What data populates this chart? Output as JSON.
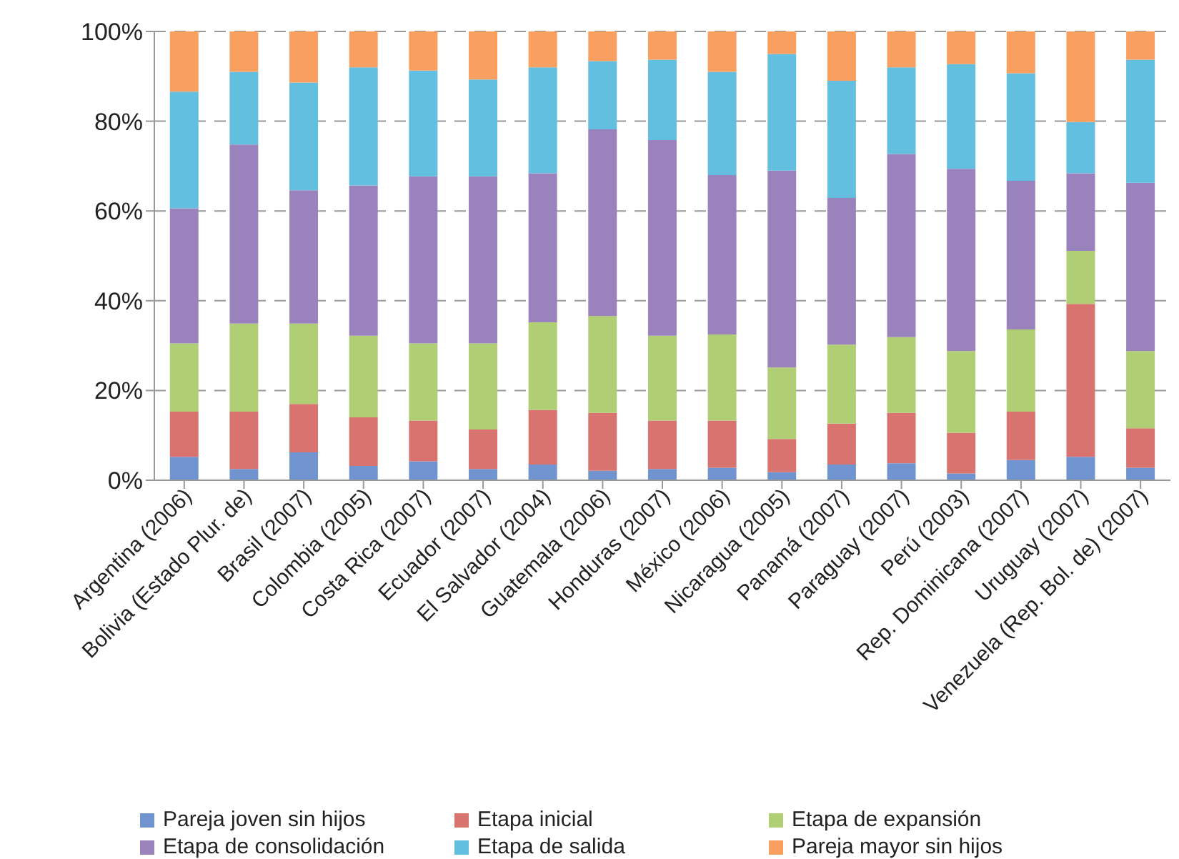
{
  "chart_data": {
    "type": "bar",
    "stacked": true,
    "categories": [
      "Argentina (2006)",
      "Bolivia (Estado Plur. de)",
      "Brasil (2007)",
      "Colombia (2005)",
      "Costa Rica (2007)",
      "Ecuador (2007)",
      "El Salvador (2004)",
      "Guatemala (2006)",
      "Honduras (2007)",
      "México (2006)",
      "Nicaragua (2005)",
      "Panamá (2007)",
      "Paraguay (2007)",
      "Perú (2003)",
      "Rep. Dominicana (2007)",
      "Uruguay (2007)",
      "Venezuela (Rep. Bol. de) (2007)"
    ],
    "series": [
      {
        "name": "Pareja joven sin hijos",
        "color": "#6f94d0",
        "values": [
          5.2,
          2.5,
          6.2,
          3.2,
          4.2,
          2.5,
          3.5,
          2.1,
          2.5,
          2.8,
          1.8,
          3.5,
          3.8,
          1.5,
          4.5,
          5.2,
          2.8
        ]
      },
      {
        "name": "Etapa inicial",
        "color": "#d9736f",
        "values": [
          10.1,
          12.8,
          10.8,
          10.8,
          9.1,
          8.8,
          12.2,
          12.9,
          10.8,
          10.5,
          7.4,
          9.1,
          11.2,
          9.1,
          10.8,
          34.1,
          8.8
        ]
      },
      {
        "name": "Etapa de expansión",
        "color": "#b0cf74",
        "values": [
          15.2,
          19.6,
          17.9,
          18.2,
          17.2,
          19.2,
          19.5,
          21.6,
          18.9,
          19.2,
          15.9,
          17.6,
          16.9,
          18.2,
          18.3,
          11.8,
          17.2
        ]
      },
      {
        "name": "Etapa de consolidación",
        "color": "#9a83bd",
        "values": [
          30.1,
          39.9,
          29.7,
          33.5,
          37.2,
          37.2,
          33.2,
          41.6,
          43.6,
          35.5,
          43.9,
          32.7,
          40.8,
          40.6,
          33.1,
          17.3,
          37.5
        ]
      },
      {
        "name": "Etapa de salida",
        "color": "#62bfe0",
        "values": [
          26.0,
          16.2,
          24.0,
          26.3,
          23.6,
          21.6,
          23.6,
          15.2,
          17.9,
          23.0,
          26.0,
          26.1,
          19.3,
          23.3,
          24.0,
          11.4,
          27.4
        ]
      },
      {
        "name": "Pareja mayor sin hijos",
        "color": "#f9a060",
        "values": [
          13.4,
          9.0,
          11.4,
          8.0,
          8.7,
          10.7,
          8.0,
          6.6,
          6.3,
          9.0,
          5.0,
          11.0,
          8.0,
          7.3,
          9.3,
          20.2,
          6.3
        ]
      }
    ],
    "ylim": [
      0,
      100
    ],
    "yticks": [
      {
        "value": 0,
        "label": "0%"
      },
      {
        "value": 20,
        "label": "20%"
      },
      {
        "value": 40,
        "label": "40%"
      },
      {
        "value": 60,
        "label": "60%"
      },
      {
        "value": 80,
        "label": "80%"
      },
      {
        "value": 100,
        "label": "100%"
      }
    ],
    "grid": "y",
    "legend": "bottom"
  }
}
